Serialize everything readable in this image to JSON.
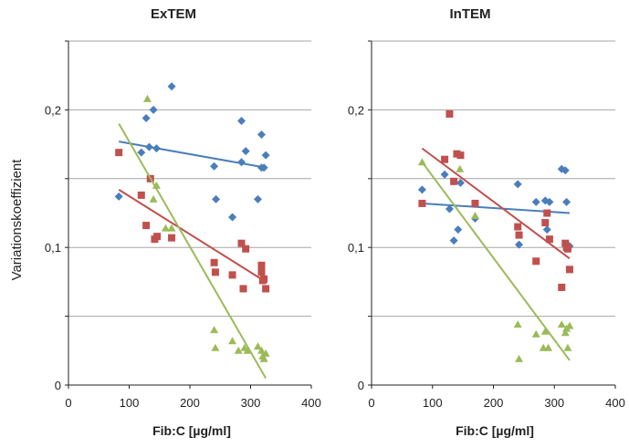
{
  "figure": {
    "ylabel": "Variationskoeffizient",
    "colors": {
      "blue": "#4a7ebb",
      "red": "#c0504d",
      "green": "#9bbb59",
      "grid": "#a6a6a6",
      "axis": "#222222"
    }
  },
  "chart_data": [
    {
      "type": "scatter",
      "title": "ExTEM",
      "xlabel": "Fib:C [µg/ml]",
      "ylabel": "Variationskoeffizient",
      "xlim": [
        0,
        400
      ],
      "ylim": [
        0,
        0.25
      ],
      "x_ticks": [
        "0",
        "100",
        "200",
        "300",
        "400"
      ],
      "y_ticks": [
        "0",
        "0,1",
        "0,2"
      ],
      "grid": "horizontal",
      "series": [
        {
          "marker": "diamond",
          "color": "#4a7ebb",
          "points": [
            [
              83,
              0.137
            ],
            [
              120,
              0.169
            ],
            [
              128,
              0.194
            ],
            [
              133,
              0.173
            ],
            [
              140,
              0.2
            ],
            [
              145,
              0.172
            ],
            [
              170,
              0.217
            ],
            [
              240,
              0.159
            ],
            [
              243,
              0.135
            ],
            [
              270,
              0.122
            ],
            [
              285,
              0.192
            ],
            [
              285,
              0.162
            ],
            [
              292,
              0.17
            ],
            [
              312,
              0.135
            ],
            [
              318,
              0.182
            ],
            [
              318,
              0.158
            ],
            [
              322,
              0.158
            ],
            [
              325,
              0.167
            ]
          ],
          "trendline": [
            [
              83,
              0.177
            ],
            [
              325,
              0.158
            ]
          ]
        },
        {
          "marker": "square",
          "color": "#c0504d",
          "points": [
            [
              83,
              0.169
            ],
            [
              120,
              0.138
            ],
            [
              128,
              0.116
            ],
            [
              135,
              0.15
            ],
            [
              142,
              0.106
            ],
            [
              146,
              0.108
            ],
            [
              170,
              0.107
            ],
            [
              240,
              0.089
            ],
            [
              242,
              0.082
            ],
            [
              270,
              0.08
            ],
            [
              285,
              0.103
            ],
            [
              288,
              0.07
            ],
            [
              292,
              0.099
            ],
            [
              318,
              0.087
            ],
            [
              318,
              0.082
            ],
            [
              320,
              0.076
            ],
            [
              322,
              0.077
            ],
            [
              325,
              0.07
            ]
          ],
          "trendline": [
            [
              83,
              0.142
            ],
            [
              325,
              0.075
            ]
          ]
        },
        {
          "marker": "triangle",
          "color": "#9bbb59",
          "points": [
            [
              130,
              0.208
            ],
            [
              140,
              0.135
            ],
            [
              145,
              0.145
            ],
            [
              160,
              0.114
            ],
            [
              170,
              0.114
            ],
            [
              240,
              0.04
            ],
            [
              242,
              0.027
            ],
            [
              270,
              0.032
            ],
            [
              280,
              0.025
            ],
            [
              290,
              0.027
            ],
            [
              295,
              0.025
            ],
            [
              312,
              0.028
            ],
            [
              318,
              0.025
            ],
            [
              320,
              0.021
            ],
            [
              322,
              0.019
            ],
            [
              325,
              0.023
            ]
          ],
          "trendline": [
            [
              83,
              0.19
            ],
            [
              325,
              0.005
            ]
          ]
        }
      ]
    },
    {
      "type": "scatter",
      "title": "InTEM",
      "xlabel": "Fib:C [µg/ml]",
      "ylabel": "",
      "xlim": [
        0,
        400
      ],
      "ylim": [
        0,
        0.25
      ],
      "x_ticks": [
        "0",
        "100",
        "200",
        "300",
        "400"
      ],
      "y_ticks": [
        "0",
        "0,1",
        "0,2"
      ],
      "grid": "horizontal",
      "series": [
        {
          "marker": "diamond",
          "color": "#4a7ebb",
          "points": [
            [
              83,
              0.142
            ],
            [
              120,
              0.153
            ],
            [
              128,
              0.128
            ],
            [
              135,
              0.105
            ],
            [
              142,
              0.113
            ],
            [
              146,
              0.147
            ],
            [
              170,
              0.121
            ],
            [
              240,
              0.146
            ],
            [
              242,
              0.102
            ],
            [
              270,
              0.133
            ],
            [
              285,
              0.134
            ],
            [
              288,
              0.113
            ],
            [
              292,
              0.133
            ],
            [
              312,
              0.157
            ],
            [
              318,
              0.156
            ],
            [
              320,
              0.133
            ],
            [
              322,
              0.099
            ],
            [
              325,
              0.101
            ]
          ],
          "trendline": [
            [
              83,
              0.132
            ],
            [
              325,
              0.125
            ]
          ]
        },
        {
          "marker": "square",
          "color": "#c0504d",
          "points": [
            [
              83,
              0.132
            ],
            [
              120,
              0.164
            ],
            [
              128,
              0.197
            ],
            [
              135,
              0.148
            ],
            [
              140,
              0.168
            ],
            [
              146,
              0.167
            ],
            [
              170,
              0.132
            ],
            [
              240,
              0.115
            ],
            [
              242,
              0.109
            ],
            [
              270,
              0.09
            ],
            [
              285,
              0.118
            ],
            [
              288,
              0.125
            ],
            [
              292,
              0.106
            ],
            [
              312,
              0.071
            ],
            [
              318,
              0.103
            ],
            [
              320,
              0.1
            ],
            [
              322,
              0.099
            ],
            [
              325,
              0.084
            ]
          ],
          "trendline": [
            [
              83,
              0.172
            ],
            [
              325,
              0.092
            ]
          ]
        },
        {
          "marker": "triangle",
          "color": "#9bbb59",
          "points": [
            [
              83,
              0.162
            ],
            [
              145,
              0.157
            ],
            [
              170,
              0.123
            ],
            [
              240,
              0.044
            ],
            [
              242,
              0.019
            ],
            [
              270,
              0.037
            ],
            [
              282,
              0.027
            ],
            [
              285,
              0.039
            ],
            [
              290,
              0.027
            ],
            [
              312,
              0.044
            ],
            [
              318,
              0.038
            ],
            [
              320,
              0.041
            ],
            [
              322,
              0.027
            ],
            [
              325,
              0.043
            ]
          ],
          "trendline": [
            [
              83,
              0.162
            ],
            [
              325,
              0.018
            ]
          ]
        }
      ]
    }
  ]
}
